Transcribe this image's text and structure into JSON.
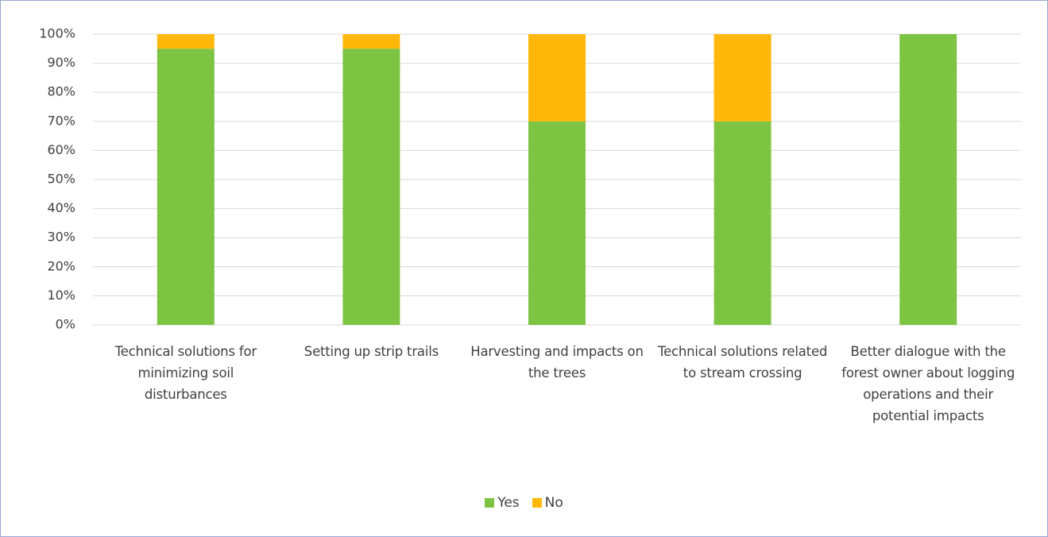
{
  "chart_data": {
    "type": "stacked_bar",
    "categories": [
      "Technical solutions for minimizing soil disturbances",
      "Setting up strip trails",
      "Harvesting and impacts on the trees",
      "Technical solutions related to stream crossing",
      "Better dialogue with the forest owner about logging operations and their potential impacts"
    ],
    "series": [
      {
        "name": "Yes",
        "color": "#7dc443",
        "values": [
          95,
          95,
          70,
          70,
          100
        ]
      },
      {
        "name": "No",
        "color": "#ffb80a",
        "values": [
          5,
          5,
          30,
          30,
          0
        ]
      }
    ],
    "ylim": [
      0,
      100
    ],
    "yticks": [
      {
        "value": 0,
        "label": "0%"
      },
      {
        "value": 10,
        "label": "10%"
      },
      {
        "value": 20,
        "label": "20%"
      },
      {
        "value": 30,
        "label": "30%"
      },
      {
        "value": 40,
        "label": "40%"
      },
      {
        "value": 50,
        "label": "50%"
      },
      {
        "value": 60,
        "label": "60%"
      },
      {
        "value": 70,
        "label": "70%"
      },
      {
        "value": 80,
        "label": "80%"
      },
      {
        "value": 90,
        "label": "90%"
      },
      {
        "value": 100,
        "label": "100%"
      }
    ],
    "grid": true,
    "legend": "bottom"
  }
}
